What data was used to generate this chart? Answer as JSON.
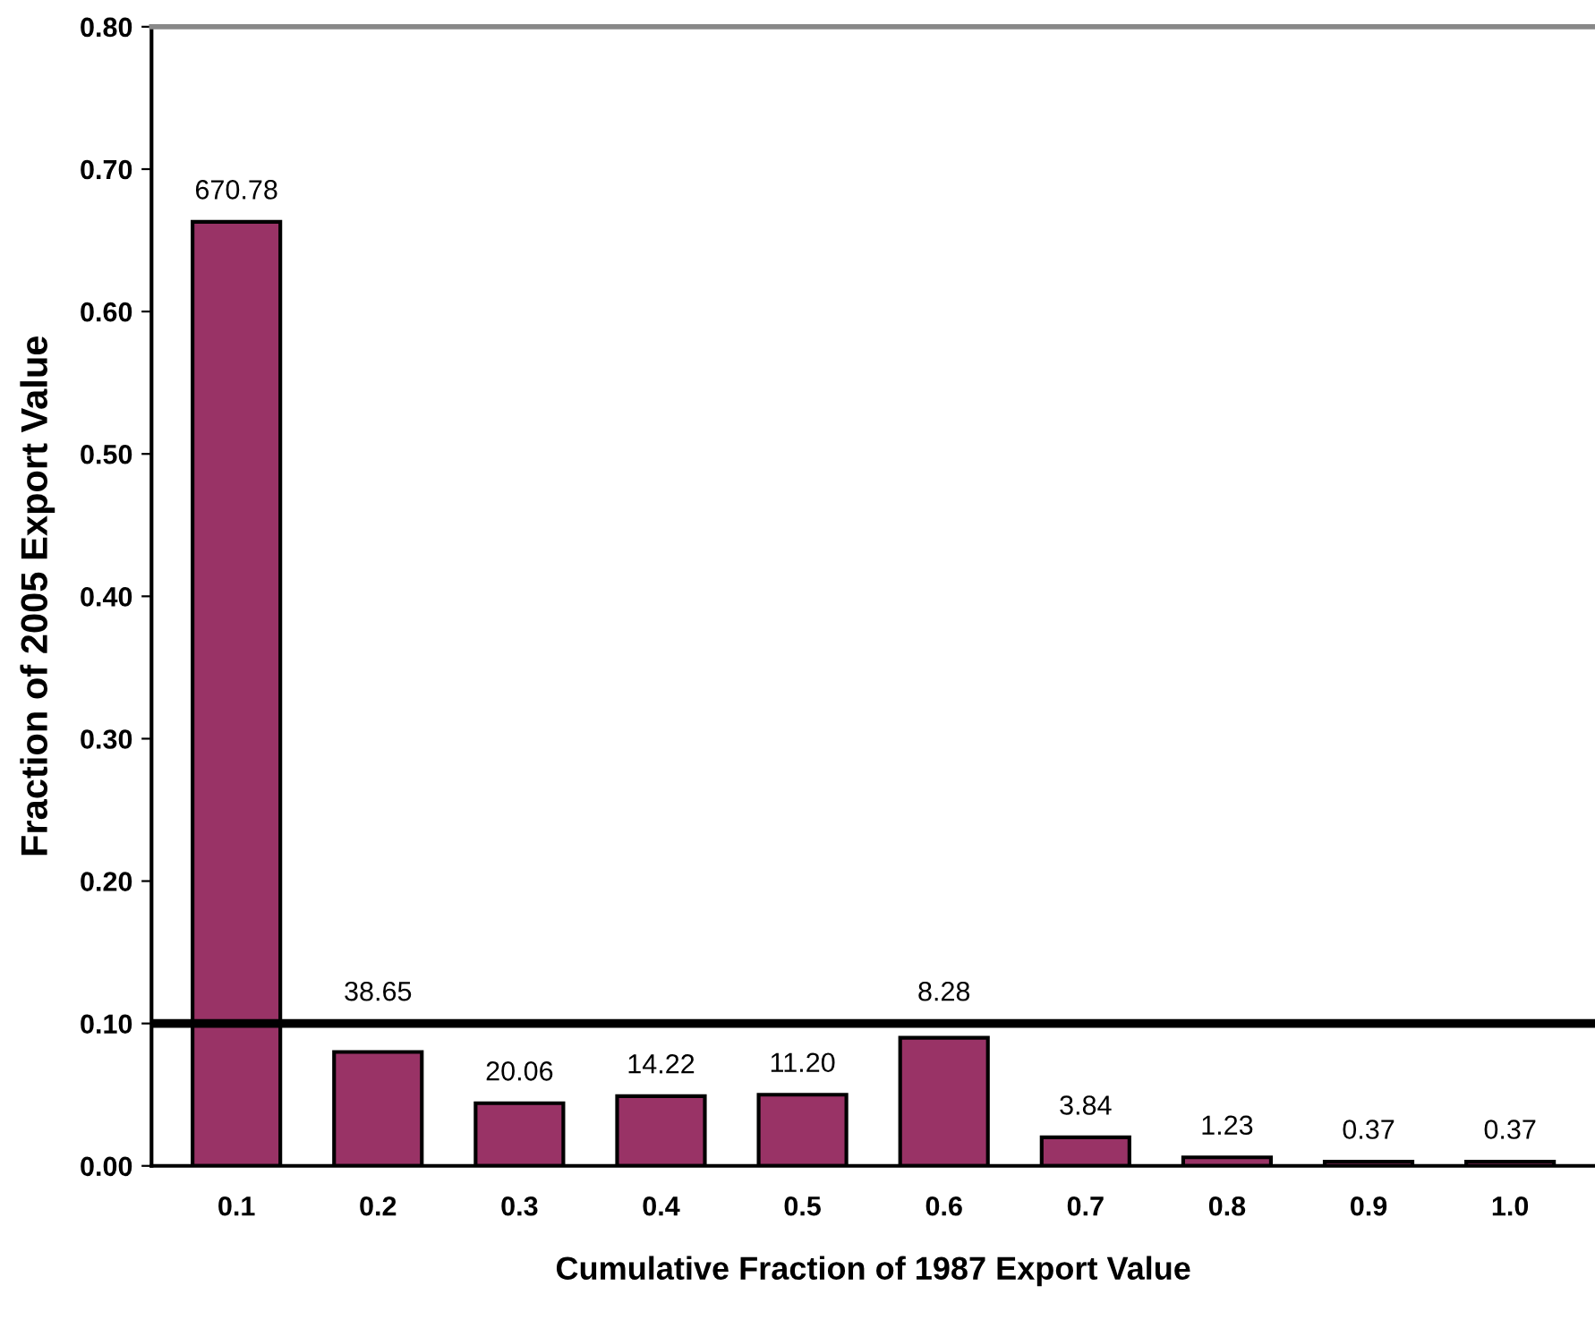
{
  "chart_data": {
    "type": "bar",
    "xlabel": "Cumulative Fraction of 1987 Export Value",
    "ylabel": "Fraction of 2005 Export Value",
    "categories": [
      "0.1",
      "0.2",
      "0.3",
      "0.4",
      "0.5",
      "0.6",
      "0.7",
      "0.8",
      "0.9",
      "1.0"
    ],
    "values": [
      0.663,
      0.08,
      0.044,
      0.049,
      0.05,
      0.09,
      0.02,
      0.006,
      0.003,
      0.003
    ],
    "annotations": [
      {
        "text": "670.78",
        "x": "0.1",
        "y": 0.663
      },
      {
        "text": "38.65",
        "x": "0.2",
        "y": 0.08
      },
      {
        "text": "20.06",
        "x": "0.3",
        "y": 0.044
      },
      {
        "text": "14.22",
        "x": "0.4",
        "y": 0.049
      },
      {
        "text": "11.20",
        "x": "0.5",
        "y": 0.05
      },
      {
        "text": "8.28",
        "x": "0.6",
        "y": 0.09
      },
      {
        "text": "3.84",
        "x": "0.7",
        "y": 0.02
      },
      {
        "text": "1.23",
        "x": "0.8",
        "y": 0.006
      },
      {
        "text": "0.37",
        "x": "0.9",
        "y": 0.003
      },
      {
        "text": "0.37",
        "x": "1.0",
        "y": 0.003
      }
    ],
    "color": "#993366",
    "ylim": [
      0,
      0.8
    ],
    "yticks": [
      {
        "value": 0,
        "label": "0.00"
      },
      {
        "value": 0.1,
        "label": "0.10"
      },
      {
        "value": 0.2,
        "label": "0.20"
      },
      {
        "value": 0.3,
        "label": "0.30"
      },
      {
        "value": 0.4,
        "label": "0.40"
      },
      {
        "value": 0.5,
        "label": "0.50"
      },
      {
        "value": 0.6,
        "label": "0.60"
      },
      {
        "value": 0.7,
        "label": "0.70"
      },
      {
        "value": 0.8,
        "label": "0.80"
      }
    ],
    "ref_lines": [
      {
        "axis": "y",
        "value": 0.1,
        "color": "#000000",
        "line_style": "solid"
      }
    ],
    "grid": false,
    "legend": false
  }
}
